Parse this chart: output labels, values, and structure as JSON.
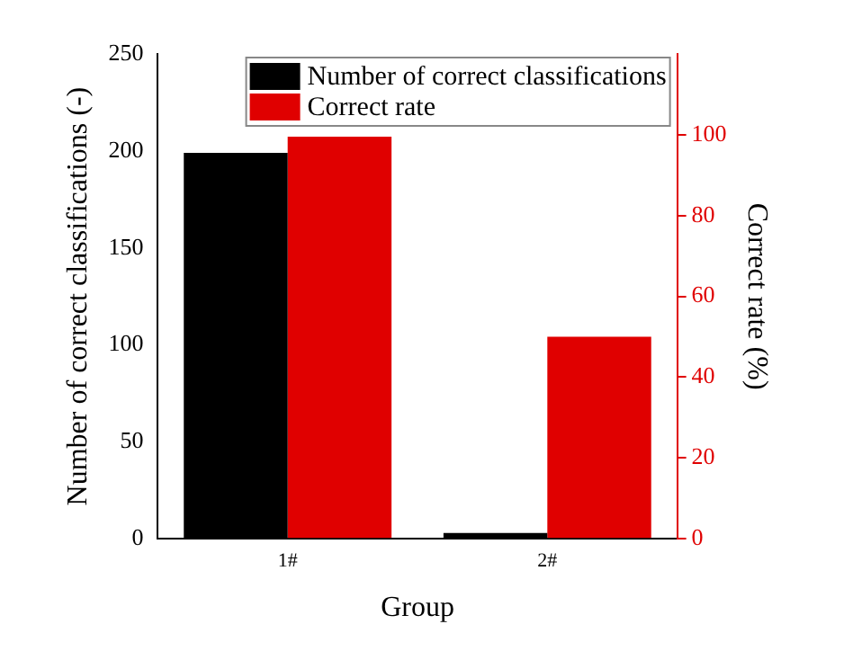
{
  "chart_data": {
    "type": "bar",
    "xlabel": "Group",
    "ylabel": "Number of correct classifications (-)",
    "y2label": "Correct rate (%)",
    "categories": [
      "1#",
      "2#"
    ],
    "series": [
      {
        "name": "Number of correct classifications",
        "color": "#000000",
        "values": [
          199,
          3
        ]
      },
      {
        "name": "Correct rate",
        "color": "#e00000",
        "values": [
          99.5,
          50
        ],
        "axis": "y2"
      }
    ],
    "ylim": [
      0,
      250
    ],
    "yticks": [
      0,
      50,
      100,
      150,
      200,
      250
    ],
    "y2lim": [
      0,
      120
    ],
    "y2ticks": [
      0,
      20,
      40,
      60,
      80,
      100
    ],
    "grid": false,
    "legend": "top right"
  }
}
